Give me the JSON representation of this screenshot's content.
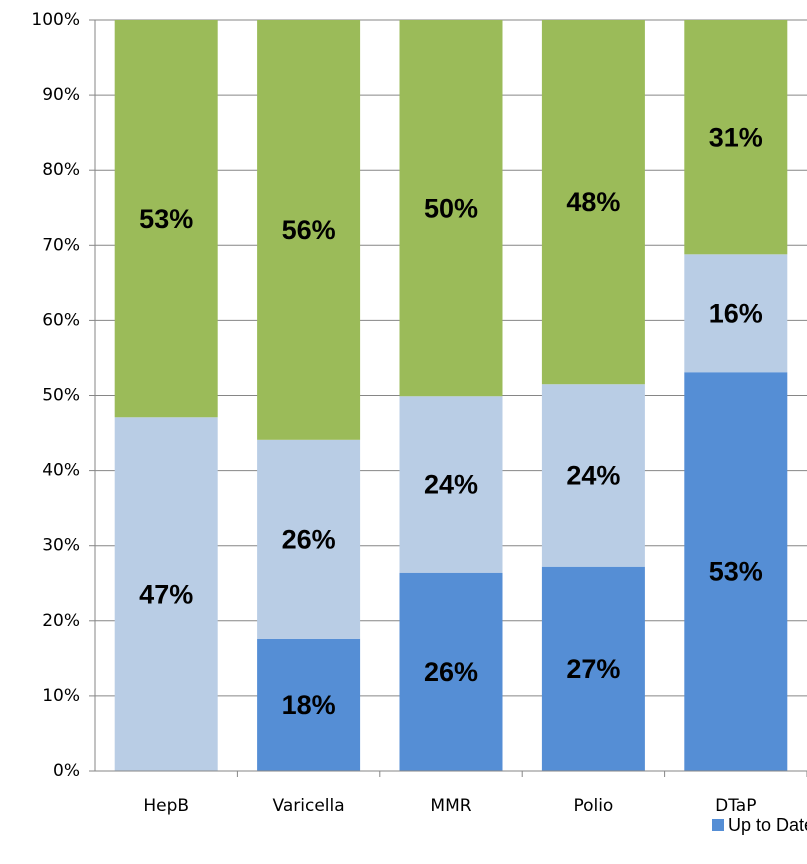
{
  "chart_data": {
    "type": "stacked_bar",
    "categories": [
      "HepB",
      "Varicella",
      "MMR",
      "Polio",
      "DTaP"
    ],
    "series": [
      {
        "name": "Up to Date",
        "color": "#558ed5",
        "values": [
          0,
          17.6,
          26.4,
          27.2,
          53.1
        ],
        "value_labels": [
          null,
          "18%",
          "26%",
          "27%",
          "53%"
        ]
      },
      {
        "color": "#b9cde5",
        "values": [
          47.1,
          26.5,
          23.5,
          24.3,
          15.7
        ],
        "value_labels": [
          "47%",
          "26%",
          "24%",
          "24%",
          "16%"
        ]
      },
      {
        "color": "#9bbb59",
        "values": [
          52.9,
          55.9,
          50.1,
          48.5,
          31.2
        ],
        "value_labels": [
          "53%",
          "56%",
          "50%",
          "48%",
          "31%"
        ]
      }
    ],
    "ylim": [
      0,
      100
    ],
    "yticks": [
      {
        "value": 0,
        "label": "0%"
      },
      {
        "value": 10,
        "label": "10%"
      },
      {
        "value": 20,
        "label": "20%"
      },
      {
        "value": 30,
        "label": "30%"
      },
      {
        "value": 40,
        "label": "40%"
      },
      {
        "value": 50,
        "label": "50%"
      },
      {
        "value": 60,
        "label": "60%"
      },
      {
        "value": 70,
        "label": "70%"
      },
      {
        "value": 80,
        "label": "80%"
      },
      {
        "value": 90,
        "label": "90%"
      },
      {
        "value": 100,
        "label": "100%"
      }
    ],
    "grid": true,
    "legend": "bottom-right"
  }
}
